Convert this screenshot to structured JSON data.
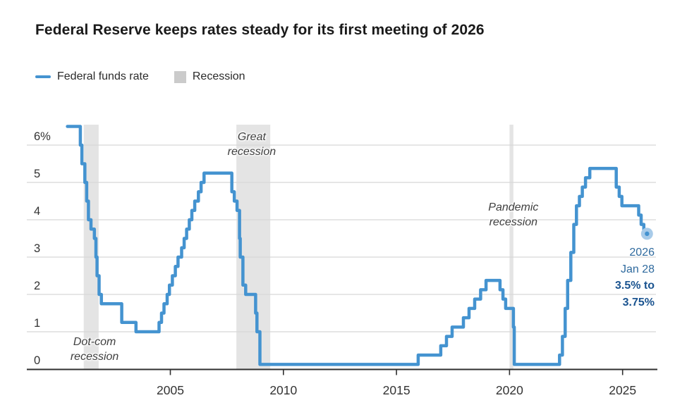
{
  "page": {
    "title": "Federal Reserve keeps rates steady for its first meeting of 2026"
  },
  "legend": {
    "items": [
      {
        "label": "Federal funds rate",
        "type": "line"
      },
      {
        "label": "Recession",
        "type": "band"
      }
    ]
  },
  "colors": {
    "line": "#4493d0",
    "end_dot_outer": "#a8cbe9",
    "recession_band": "#e4e4e4",
    "legend_band_swatch": "#cbcbcb",
    "gridline": "#d8d8d8",
    "axis": "#2f2f2f",
    "callout_regular": "#2f6a9e",
    "callout_bold": "#1b5490"
  },
  "chart_data": {
    "type": "line",
    "step": true,
    "title": "Federal Reserve keeps rates steady for its first meeting of 2026",
    "xlabel": "",
    "ylabel": "",
    "x_range": [
      1998.7,
      2026.5
    ],
    "y_range": [
      0,
      6.6
    ],
    "grid": true,
    "legend_position": "top-left",
    "x_ticks": [
      {
        "label": "2005",
        "year": 2005
      },
      {
        "label": "2010",
        "year": 2010
      },
      {
        "label": "2015",
        "year": 2015
      },
      {
        "label": "2020",
        "year": 2020
      },
      {
        "label": "2025",
        "year": 2025
      }
    ],
    "y_ticks": [
      {
        "label": "6%",
        "value": 6
      },
      {
        "label": "5",
        "value": 5
      },
      {
        "label": "4",
        "value": 4
      },
      {
        "label": "3",
        "value": 3
      },
      {
        "label": "2",
        "value": 2
      },
      {
        "label": "1",
        "value": 1
      },
      {
        "label": "0",
        "value": 0
      }
    ],
    "series": [
      {
        "name": "Federal funds rate",
        "points": [
          [
            2000.45,
            6.5
          ],
          [
            2001.02,
            6.0
          ],
          [
            2001.09,
            5.5
          ],
          [
            2001.22,
            5.0
          ],
          [
            2001.3,
            4.5
          ],
          [
            2001.38,
            4.0
          ],
          [
            2001.49,
            3.75
          ],
          [
            2001.64,
            3.5
          ],
          [
            2001.71,
            3.0
          ],
          [
            2001.76,
            2.5
          ],
          [
            2001.85,
            2.0
          ],
          [
            2001.95,
            1.75
          ],
          [
            2002.85,
            1.25
          ],
          [
            2003.48,
            1.0
          ],
          [
            2004.5,
            1.25
          ],
          [
            2004.61,
            1.5
          ],
          [
            2004.72,
            1.75
          ],
          [
            2004.86,
            2.0
          ],
          [
            2004.96,
            2.25
          ],
          [
            2005.09,
            2.5
          ],
          [
            2005.22,
            2.75
          ],
          [
            2005.34,
            3.0
          ],
          [
            2005.5,
            3.25
          ],
          [
            2005.61,
            3.5
          ],
          [
            2005.72,
            3.75
          ],
          [
            2005.84,
            4.0
          ],
          [
            2005.95,
            4.25
          ],
          [
            2006.08,
            4.5
          ],
          [
            2006.24,
            4.75
          ],
          [
            2006.36,
            5.0
          ],
          [
            2006.49,
            5.25
          ],
          [
            2007.72,
            4.75
          ],
          [
            2007.83,
            4.5
          ],
          [
            2007.95,
            4.25
          ],
          [
            2008.06,
            3.5
          ],
          [
            2008.09,
            3.0
          ],
          [
            2008.21,
            2.25
          ],
          [
            2008.33,
            2.0
          ],
          [
            2008.77,
            1.5
          ],
          [
            2008.83,
            1.0
          ],
          [
            2008.96,
            0.125
          ],
          [
            2015.96,
            0.375
          ],
          [
            2016.96,
            0.625
          ],
          [
            2017.21,
            0.875
          ],
          [
            2017.46,
            1.125
          ],
          [
            2017.96,
            1.375
          ],
          [
            2018.21,
            1.625
          ],
          [
            2018.46,
            1.875
          ],
          [
            2018.72,
            2.125
          ],
          [
            2018.96,
            2.375
          ],
          [
            2019.58,
            2.125
          ],
          [
            2019.71,
            1.875
          ],
          [
            2019.83,
            1.625
          ],
          [
            2020.17,
            1.125
          ],
          [
            2020.21,
            0.125
          ],
          [
            2022.21,
            0.375
          ],
          [
            2022.34,
            0.875
          ],
          [
            2022.46,
            1.625
          ],
          [
            2022.57,
            2.375
          ],
          [
            2022.71,
            3.125
          ],
          [
            2022.84,
            3.875
          ],
          [
            2022.96,
            4.375
          ],
          [
            2023.09,
            4.625
          ],
          [
            2023.22,
            4.875
          ],
          [
            2023.36,
            5.125
          ],
          [
            2023.55,
            5.375
          ],
          [
            2024.72,
            4.875
          ],
          [
            2024.85,
            4.625
          ],
          [
            2024.97,
            4.375
          ],
          [
            2025.71,
            4.125
          ],
          [
            2025.82,
            3.875
          ],
          [
            2025.94,
            3.625
          ],
          [
            2026.08,
            3.625
          ]
        ]
      }
    ],
    "recessions": [
      {
        "name": "dot-com",
        "label_lines": [
          "Dot-com",
          "recession"
        ],
        "start": 2001.17,
        "end": 2001.83,
        "label_anchor": {
          "year": 2001.65,
          "value": 0.53
        }
      },
      {
        "name": "great",
        "label_lines": [
          "Great",
          "recession"
        ],
        "start": 2007.92,
        "end": 2009.42,
        "label_anchor": {
          "year": 2008.6,
          "value": 6.02
        }
      },
      {
        "name": "pandemic",
        "label_lines": [
          "Pandemic",
          "recession"
        ],
        "start": 2020.0,
        "end": 2020.17,
        "label_anchor": {
          "year": 2020.17,
          "value": 4.13
        }
      }
    ],
    "end_label": {
      "line1": "2026",
      "line2": "Jan 28",
      "bold1": "3.5% to",
      "bold2": "3.75%",
      "point": [
        2026.08,
        3.625
      ]
    }
  }
}
